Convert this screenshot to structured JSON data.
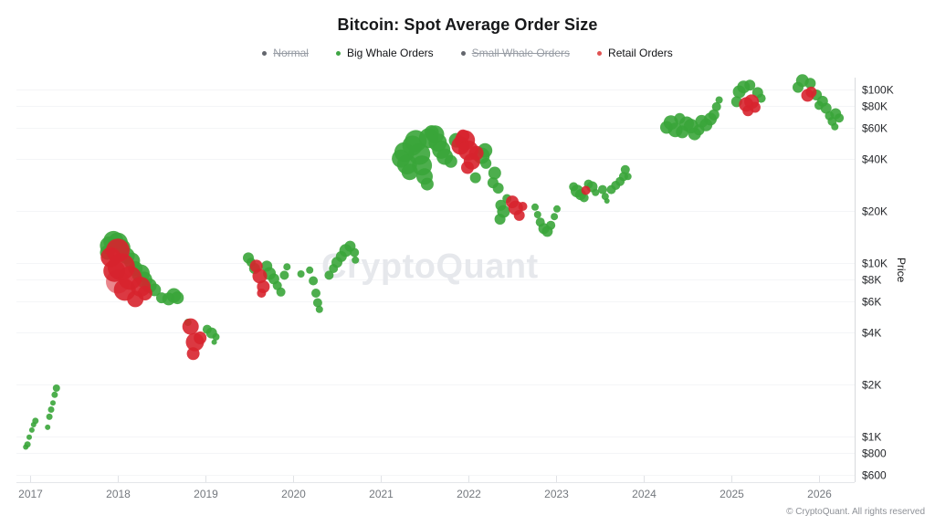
{
  "header": {
    "title": "Bitcoin: Spot Average Order Size"
  },
  "legend": {
    "items": [
      {
        "label": "Normal",
        "color": "#63666d",
        "disabled": true
      },
      {
        "label": "Big Whale Orders",
        "color": "#3fa544",
        "disabled": false
      },
      {
        "label": "Small Whale Orders",
        "color": "#63666d",
        "disabled": true
      },
      {
        "label": "Retail Orders",
        "color": "#e05252",
        "disabled": false
      }
    ]
  },
  "watermark": {
    "text": "CryptoQuant"
  },
  "footer": {
    "text": "© CryptoQuant. All rights reserved"
  },
  "axes": {
    "y": {
      "title": "Price",
      "scale": "log"
    },
    "x": {
      "scale": "time-years"
    }
  },
  "chart_data": {
    "type": "scatter",
    "title": "Bitcoin: Spot Average Order Size",
    "xlabel": "",
    "ylabel": "Price",
    "y_scale": "log",
    "x_range": [
      2016.85,
      2026.4
    ],
    "y_range": [
      600,
      120000
    ],
    "grid": true,
    "legend_position": "top",
    "x_ticks": [
      2017,
      2018,
      2019,
      2020,
      2021,
      2022,
      2023,
      2024,
      2025,
      2026
    ],
    "y_ticks": [
      {
        "label": "$100K",
        "value": 100000
      },
      {
        "label": "$80K",
        "value": 80000
      },
      {
        "label": "$60K",
        "value": 60000
      },
      {
        "label": "$40K",
        "value": 40000
      },
      {
        "label": "$20K",
        "value": 20000
      },
      {
        "label": "$10K",
        "value": 10000
      },
      {
        "label": "$8K",
        "value": 8000
      },
      {
        "label": "$6K",
        "value": 6000
      },
      {
        "label": "$4K",
        "value": 4000
      },
      {
        "label": "$2K",
        "value": 2000
      },
      {
        "label": "$1K",
        "value": 1000
      },
      {
        "label": "$800",
        "value": 800
      },
      {
        "label": "$600",
        "value": 600
      }
    ],
    "point_format": "[year, price_usd, radius_px, opacity?]",
    "series": [
      {
        "name": "Normal",
        "color": "#63666d",
        "visible": false,
        "points": []
      },
      {
        "name": "Big Whale Orders",
        "color": "#3aa53a",
        "visible": true,
        "points": [
          [
            2016.95,
            870,
            3
          ],
          [
            2016.97,
            900,
            3.5
          ],
          [
            2016.99,
            990,
            3
          ],
          [
            2017.02,
            1090,
            3
          ],
          [
            2017.04,
            1170,
            3
          ],
          [
            2017.06,
            1230,
            3.5
          ],
          [
            2017.2,
            1130,
            3
          ],
          [
            2017.22,
            1300,
            3.5
          ],
          [
            2017.24,
            1430,
            3.5
          ],
          [
            2017.26,
            1560,
            3
          ],
          [
            2017.28,
            1740,
            3.5
          ],
          [
            2017.3,
            1900,
            4
          ],
          [
            2017.88,
            11500,
            8
          ],
          [
            2017.9,
            12600,
            10
          ],
          [
            2017.95,
            13400,
            11
          ],
          [
            2018.0,
            13100,
            11
          ],
          [
            2018.05,
            12300,
            9
          ],
          [
            2018.1,
            11000,
            9
          ],
          [
            2018.16,
            10300,
            9
          ],
          [
            2018.2,
            9300,
            8
          ],
          [
            2018.26,
            8700,
            10
          ],
          [
            2018.3,
            8000,
            9
          ],
          [
            2018.36,
            7400,
            8
          ],
          [
            2018.42,
            7000,
            7
          ],
          [
            2018.5,
            6300,
            6
          ],
          [
            2018.58,
            6200,
            7
          ],
          [
            2018.64,
            6500,
            8
          ],
          [
            2018.68,
            6300,
            7
          ],
          [
            2018.8,
            4550,
            4
          ],
          [
            2019.02,
            4150,
            5
          ],
          [
            2019.07,
            3950,
            6
          ],
          [
            2019.12,
            3750,
            4
          ],
          [
            2019.1,
            3500,
            3
          ],
          [
            2019.49,
            10700,
            6
          ],
          [
            2019.52,
            10100,
            5
          ],
          [
            2019.56,
            9300,
            6
          ],
          [
            2019.7,
            9600,
            6
          ],
          [
            2019.73,
            8700,
            7
          ],
          [
            2019.78,
            8100,
            6
          ],
          [
            2019.82,
            7400,
            5
          ],
          [
            2019.86,
            6800,
            5
          ],
          [
            2019.9,
            8500,
            5
          ],
          [
            2019.93,
            9500,
            4
          ],
          [
            2020.09,
            8650,
            4
          ],
          [
            2020.19,
            9100,
            4
          ],
          [
            2020.23,
            7900,
            5
          ],
          [
            2020.26,
            6700,
            5
          ],
          [
            2020.28,
            5900,
            5
          ],
          [
            2020.3,
            5400,
            4
          ],
          [
            2020.41,
            8500,
            5
          ],
          [
            2020.46,
            9300,
            5
          ],
          [
            2020.5,
            10100,
            6
          ],
          [
            2020.55,
            10900,
            6
          ],
          [
            2020.6,
            11800,
            7
          ],
          [
            2020.65,
            12500,
            6
          ],
          [
            2020.7,
            11500,
            5
          ],
          [
            2020.71,
            10400,
            4
          ],
          [
            2021.23,
            40000,
            10
          ],
          [
            2021.27,
            43500,
            11
          ],
          [
            2021.3,
            37000,
            11
          ],
          [
            2021.33,
            33500,
            9
          ],
          [
            2021.36,
            47500,
            11
          ],
          [
            2021.4,
            50500,
            12
          ],
          [
            2021.44,
            42500,
            12
          ],
          [
            2021.47,
            36500,
            11
          ],
          [
            2021.5,
            31500,
            9
          ],
          [
            2021.53,
            28500,
            7
          ],
          [
            2021.55,
            52500,
            11
          ],
          [
            2021.58,
            56500,
            8
          ],
          [
            2021.62,
            55000,
            10
          ],
          [
            2021.65,
            49500,
            10
          ],
          [
            2021.69,
            45000,
            10
          ],
          [
            2021.73,
            41000,
            9
          ],
          [
            2021.8,
            38500,
            7
          ],
          [
            2021.86,
            51000,
            8
          ],
          [
            2022.15,
            41500,
            9
          ],
          [
            2022.19,
            44500,
            8
          ],
          [
            2022.2,
            37500,
            6
          ],
          [
            2022.08,
            31000,
            6
          ],
          [
            2022.3,
            33000,
            7
          ],
          [
            2022.28,
            29000,
            6
          ],
          [
            2022.34,
            27000,
            6
          ],
          [
            2022.37,
            21500,
            6
          ],
          [
            2022.4,
            19800,
            7
          ],
          [
            2022.36,
            17900,
            6
          ],
          [
            2022.44,
            23500,
            5
          ],
          [
            2022.76,
            21000,
            4
          ],
          [
            2022.79,
            19000,
            4
          ],
          [
            2022.82,
            17200,
            5
          ],
          [
            2022.86,
            15800,
            6
          ],
          [
            2022.9,
            15200,
            6
          ],
          [
            2022.94,
            16500,
            5
          ],
          [
            2022.98,
            18500,
            4
          ],
          [
            2023.01,
            20500,
            4
          ],
          [
            2023.2,
            27500,
            5
          ],
          [
            2023.24,
            26000,
            7
          ],
          [
            2023.28,
            24800,
            6
          ],
          [
            2023.32,
            23800,
            5
          ],
          [
            2023.37,
            28500,
            5
          ],
          [
            2023.41,
            27500,
            6
          ],
          [
            2023.45,
            25500,
            4
          ],
          [
            2023.53,
            26500,
            5
          ],
          [
            2023.56,
            24200,
            4
          ],
          [
            2023.58,
            22800,
            3
          ],
          [
            2023.63,
            26500,
            5
          ],
          [
            2023.68,
            28000,
            5
          ],
          [
            2023.73,
            29500,
            5
          ],
          [
            2023.77,
            31500,
            5
          ],
          [
            2023.79,
            34500,
            5
          ],
          [
            2023.82,
            31500,
            4
          ],
          [
            2024.26,
            60500,
            7
          ],
          [
            2024.31,
            64500,
            8
          ],
          [
            2024.36,
            58500,
            8
          ],
          [
            2024.41,
            68000,
            6
          ],
          [
            2024.44,
            57000,
            7
          ],
          [
            2024.49,
            63500,
            8
          ],
          [
            2024.54,
            61500,
            8
          ],
          [
            2024.58,
            55500,
            7
          ],
          [
            2024.63,
            58500,
            6
          ],
          [
            2024.66,
            65500,
            7
          ],
          [
            2024.71,
            62500,
            7
          ],
          [
            2024.76,
            67500,
            7
          ],
          [
            2024.8,
            71500,
            6
          ],
          [
            2024.83,
            79500,
            5
          ],
          [
            2024.86,
            87000,
            4
          ],
          [
            2025.06,
            85000,
            6
          ],
          [
            2025.09,
            97000,
            7
          ],
          [
            2025.14,
            103500,
            7
          ],
          [
            2025.21,
            106000,
            6
          ],
          [
            2025.3,
            96000,
            6
          ],
          [
            2025.34,
            89000,
            5
          ],
          [
            2025.76,
            103000,
            6
          ],
          [
            2025.81,
            112500,
            7
          ],
          [
            2025.9,
            108500,
            6
          ],
          [
            2025.97,
            93000,
            6
          ],
          [
            2026.0,
            81000,
            5
          ],
          [
            2026.04,
            85500,
            6
          ],
          [
            2026.08,
            78000,
            6
          ],
          [
            2026.12,
            70500,
            5
          ],
          [
            2026.15,
            65500,
            5
          ],
          [
            2026.19,
            72500,
            6
          ],
          [
            2026.23,
            68500,
            5
          ],
          [
            2026.18,
            61000,
            4
          ]
        ]
      },
      {
        "name": "Small Whale Orders",
        "color": "#63666d",
        "visible": false,
        "points": []
      },
      {
        "name": "Retail Orders",
        "color": "#d7232e",
        "visible": true,
        "points": [
          [
            2017.92,
            10800,
            11
          ],
          [
            2017.96,
            9000,
            12
          ],
          [
            2018.0,
            11800,
            13
          ],
          [
            2018.04,
            9500,
            15
          ],
          [
            2018.0,
            7800,
            13,
            0.55
          ],
          [
            2018.08,
            7000,
            12
          ],
          [
            2018.14,
            8200,
            13
          ],
          [
            2018.2,
            6200,
            9
          ],
          [
            2018.26,
            7300,
            11
          ],
          [
            2018.31,
            6700,
            8
          ],
          [
            2018.83,
            4300,
            9
          ],
          [
            2018.88,
            3500,
            10
          ],
          [
            2018.86,
            3000,
            7
          ],
          [
            2018.94,
            3700,
            7
          ],
          [
            2019.58,
            9600,
            7
          ],
          [
            2019.62,
            8400,
            8
          ],
          [
            2019.66,
            7300,
            7
          ],
          [
            2019.64,
            6700,
            5
          ],
          [
            2021.91,
            47500,
            10
          ],
          [
            2021.96,
            51000,
            11
          ],
          [
            2022.0,
            44500,
            11
          ],
          [
            2022.04,
            38500,
            9
          ],
          [
            2021.99,
            35500,
            7
          ],
          [
            2022.09,
            43000,
            8
          ],
          [
            2021.94,
            54000,
            7
          ],
          [
            2022.5,
            22500,
            7
          ],
          [
            2022.54,
            20800,
            8
          ],
          [
            2022.58,
            18800,
            6
          ],
          [
            2022.62,
            21200,
            5
          ],
          [
            2023.34,
            26200,
            5
          ],
          [
            2025.17,
            82000,
            8
          ],
          [
            2025.23,
            85000,
            8
          ],
          [
            2025.19,
            75500,
            6
          ],
          [
            2025.27,
            79000,
            6
          ],
          [
            2025.87,
            92500,
            7
          ],
          [
            2025.91,
            96500,
            6
          ]
        ]
      }
    ]
  }
}
